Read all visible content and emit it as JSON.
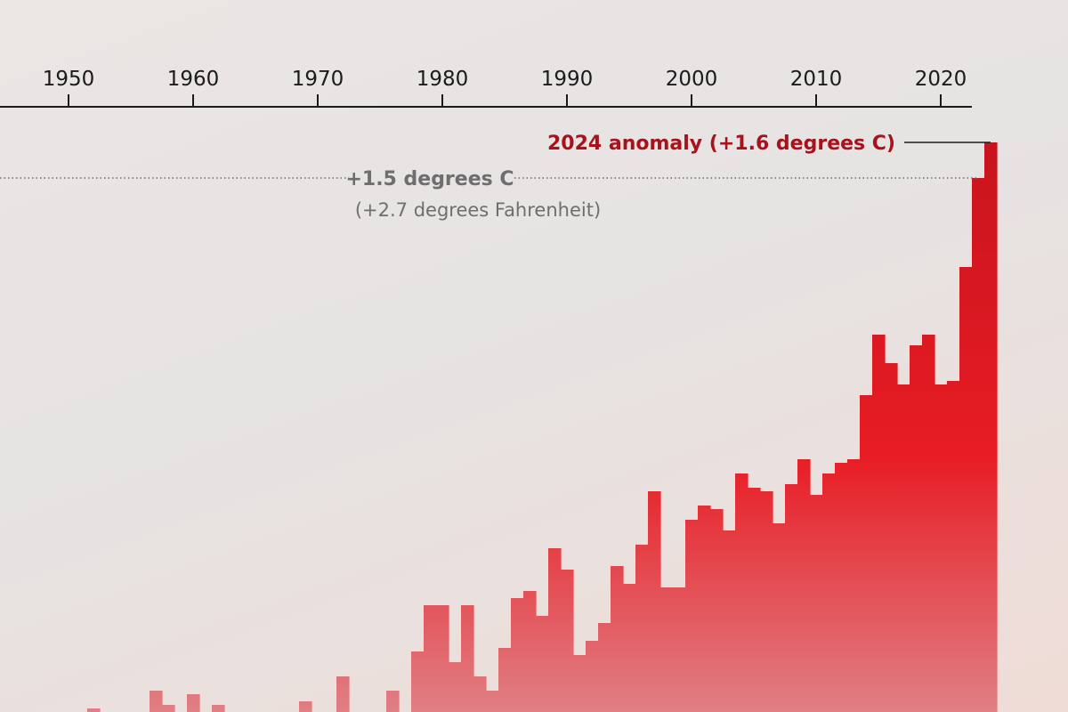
{
  "chart_data": {
    "type": "bar",
    "xlim": [
      1945,
      2024
    ],
    "ylim": [
      0,
      1.6
    ],
    "x_ticks": [
      "1950",
      "1960",
      "1970",
      "1980",
      "1990",
      "2000",
      "2010",
      "2020"
    ],
    "x": [
      1945,
      1946,
      1947,
      1948,
      1949,
      1950,
      1951,
      1952,
      1953,
      1954,
      1955,
      1956,
      1957,
      1958,
      1959,
      1960,
      1961,
      1962,
      1963,
      1964,
      1965,
      1966,
      1967,
      1968,
      1969,
      1970,
      1971,
      1972,
      1973,
      1974,
      1975,
      1976,
      1977,
      1978,
      1979,
      1980,
      1981,
      1982,
      1983,
      1984,
      1985,
      1986,
      1987,
      1988,
      1989,
      1990,
      1991,
      1992,
      1993,
      1994,
      1995,
      1996,
      1997,
      1998,
      1999,
      2000,
      2001,
      2002,
      2003,
      2004,
      2005,
      2006,
      2007,
      2008,
      2009,
      2010,
      2011,
      2012,
      2013,
      2014,
      2015,
      2016,
      2017,
      2018,
      2019,
      2020,
      2021,
      2022,
      2023,
      2024
    ],
    "values": [
      0,
      0,
      0,
      0,
      0,
      0,
      0,
      0.01,
      0,
      0,
      0,
      0,
      0.06,
      0.02,
      0,
      0.05,
      0,
      0.02,
      0,
      0,
      0,
      0,
      0,
      0,
      0.03,
      0,
      0,
      0.1,
      0,
      0,
      0,
      0.06,
      0,
      0.17,
      0.3,
      0.3,
      0.14,
      0.3,
      0.1,
      0.06,
      0.18,
      0.32,
      0.34,
      0.27,
      0.46,
      0.4,
      0.16,
      0.2,
      0.25,
      0.41,
      0.36,
      0.47,
      0.62,
      0.35,
      0.35,
      0.54,
      0.58,
      0.57,
      0.51,
      0.67,
      0.63,
      0.62,
      0.53,
      0.64,
      0.71,
      0.61,
      0.67,
      0.7,
      0.71,
      0.89,
      1.06,
      0.98,
      0.92,
      1.03,
      1.06,
      0.92,
      0.93,
      1.25,
      1.5,
      1.6
    ],
    "reference_lines": [
      {
        "value": 1.5,
        "label": "+1.5 degrees C",
        "sublabel": "(+2.7 degrees Fahrenheit)"
      }
    ],
    "annotations": [
      {
        "x": 2024,
        "value": 1.6,
        "label": "2024 anomaly (+1.6 degrees C)"
      }
    ],
    "grid": false,
    "colors": {
      "bar_top": "#c8141d",
      "bar_mid": "#e81c24",
      "bar_bottom": "#e07f84",
      "annotation": "#a8121b",
      "reference": "#6e6e6e",
      "axis": "#1b1b1b"
    }
  }
}
